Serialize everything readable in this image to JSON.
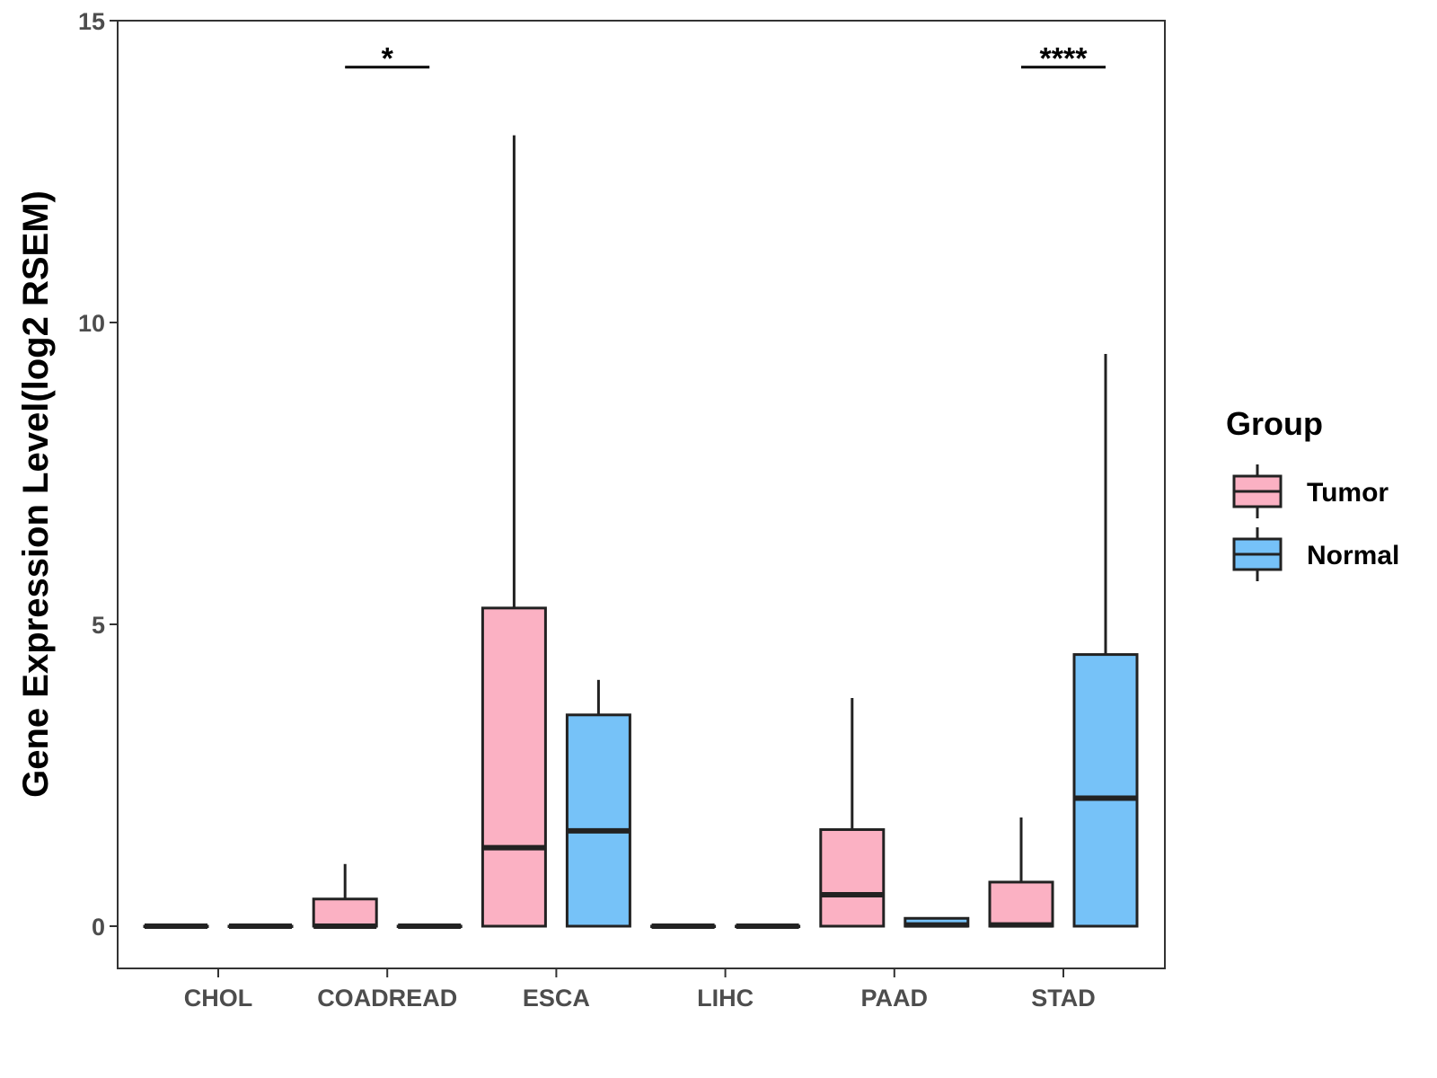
{
  "chart_data": {
    "type": "boxplot",
    "title": "",
    "xlabel": "",
    "ylabel": "Gene Expression Level(log2 RSEM)",
    "ylim": [
      -0.7,
      15
    ],
    "yticks": [
      0,
      5,
      10,
      15
    ],
    "ytick_labels": [
      "0",
      "5",
      "10",
      "15"
    ],
    "categories": [
      "CHOL",
      "COADREAD",
      "ESCA",
      "LIHC",
      "PAAD",
      "STAD"
    ],
    "legend": {
      "title": "Group",
      "position": "right",
      "entries": [
        {
          "name": "Tumor",
          "color": "#FBB1C3"
        },
        {
          "name": "Normal",
          "color": "#76C2F8"
        }
      ]
    },
    "series": [
      {
        "name": "Tumor",
        "color": "#FBB1C3",
        "boxes": [
          {
            "category": "CHOL",
            "min": 0,
            "q1": 0,
            "median": 0,
            "q3": 0,
            "max": 0
          },
          {
            "category": "COADREAD",
            "min": 0,
            "q1": 0,
            "median": 0,
            "q3": 0.45,
            "max": 1.03
          },
          {
            "category": "ESCA",
            "min": 0,
            "q1": 0,
            "median": 1.3,
            "q3": 5.27,
            "max": 13.1
          },
          {
            "category": "LIHC",
            "min": 0,
            "q1": 0,
            "median": 0,
            "q3": 0,
            "max": 0
          },
          {
            "category": "PAAD",
            "min": 0,
            "q1": 0,
            "median": 0.52,
            "q3": 1.6,
            "max": 3.78
          },
          {
            "category": "STAD",
            "min": 0,
            "q1": 0,
            "median": 0.02,
            "q3": 0.73,
            "max": 1.8
          }
        ]
      },
      {
        "name": "Normal",
        "color": "#76C2F8",
        "boxes": [
          {
            "category": "CHOL",
            "min": 0,
            "q1": 0,
            "median": 0,
            "q3": 0,
            "max": 0
          },
          {
            "category": "COADREAD",
            "min": 0,
            "q1": 0,
            "median": 0,
            "q3": 0,
            "max": 0
          },
          {
            "category": "ESCA",
            "min": 0,
            "q1": 0,
            "median": 1.58,
            "q3": 3.5,
            "max": 4.08
          },
          {
            "category": "LIHC",
            "min": 0,
            "q1": 0,
            "median": 0,
            "q3": 0,
            "max": 0
          },
          {
            "category": "PAAD",
            "min": 0,
            "q1": 0,
            "median": 0.02,
            "q3": 0.13,
            "max": 0.13
          },
          {
            "category": "STAD",
            "min": 0,
            "q1": 0,
            "median": 2.12,
            "q3": 4.5,
            "max": 9.48
          }
        ]
      }
    ],
    "significance": [
      {
        "category": "COADREAD",
        "label": "*",
        "y": 14.23
      },
      {
        "category": "STAD",
        "label": "****",
        "y": 14.23
      }
    ]
  }
}
